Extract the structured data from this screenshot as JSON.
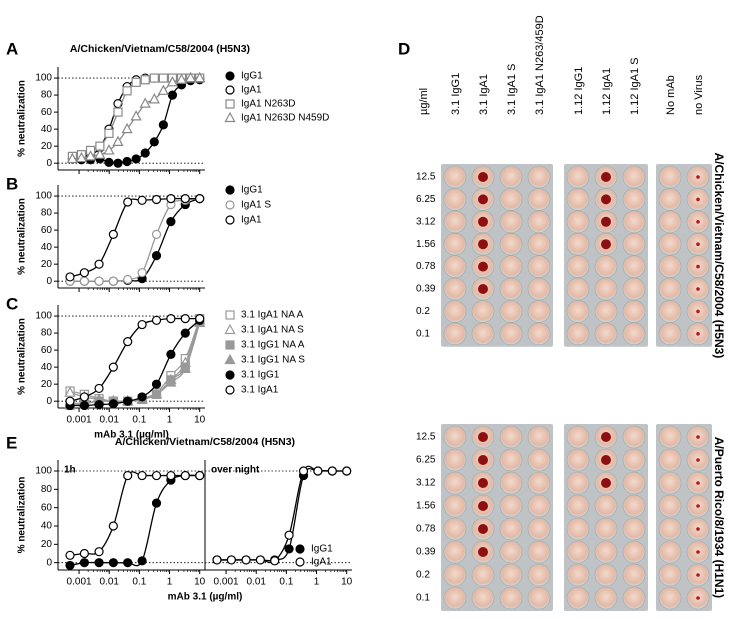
{
  "panel_letters": [
    "A",
    "B",
    "C",
    "D",
    "E"
  ],
  "chart_data": [
    {
      "type": "line",
      "title": "A/Chicken/Vietnam/C58/2004 (H5N3)",
      "ylabel": "% neutralization",
      "xscale": "log",
      "xlim": [
        0.0002,
        15
      ],
      "xticks": [
        0.001,
        0.01,
        0.1,
        1,
        10
      ],
      "show_xtick_labels": false,
      "ylim": [
        -8,
        113
      ],
      "yticks": [
        0,
        20,
        40,
        60,
        80,
        100
      ],
      "reference_lines": [
        0,
        100
      ],
      "legend": true,
      "x": [
        0.0006,
        0.0012,
        0.0024,
        0.0049,
        0.0098,
        0.0195,
        0.039,
        0.078,
        0.156,
        0.3125,
        0.625,
        1.25,
        2.5,
        5,
        10
      ],
      "series": [
        {
          "name": "IgG1",
          "marker": "circle",
          "filled": true,
          "color": "#000000",
          "values": [
            5,
            4,
            4,
            5,
            1,
            0,
            2,
            5,
            12,
            25,
            45,
            80,
            92,
            97,
            98
          ]
        },
        {
          "name": "IgA1",
          "marker": "circle",
          "filled": false,
          "color": "#000000",
          "values": [
            5,
            8,
            10,
            18,
            40,
            70,
            90,
            98,
            100,
            100,
            100,
            100,
            100,
            100,
            100
          ]
        },
        {
          "name": "IgA1 N263D",
          "marker": "square",
          "filled": false,
          "color": "#888888",
          "values": [
            8,
            10,
            15,
            20,
            35,
            60,
            85,
            95,
            98,
            100,
            100,
            100,
            100,
            100,
            100
          ]
        },
        {
          "name": "IgA1 N263D N459D",
          "marker": "triangle",
          "filled": false,
          "color": "#888888",
          "values": [
            5,
            6,
            8,
            10,
            15,
            25,
            40,
            55,
            70,
            75,
            85,
            95,
            98,
            100,
            100
          ]
        }
      ]
    },
    {
      "type": "line",
      "ylabel": "% neutralization",
      "xscale": "log",
      "xlim": [
        0.0002,
        15
      ],
      "xticks": [
        0.001,
        0.01,
        0.1,
        1,
        10
      ],
      "show_xtick_labels": false,
      "ylim": [
        -8,
        113
      ],
      "yticks": [
        0,
        20,
        40,
        60,
        80,
        100
      ],
      "reference_lines": [
        0,
        100
      ],
      "legend": true,
      "x": [
        0.0005,
        0.0015,
        0.0046,
        0.0137,
        0.041,
        0.123,
        0.37,
        1.11,
        3.33,
        10
      ],
      "series": [
        {
          "name": "IgG1",
          "marker": "circle",
          "filled": true,
          "color": "#000000",
          "values": [
            0,
            0,
            0,
            0,
            1,
            3,
            30,
            70,
            90,
            97
          ]
        },
        {
          "name": "IgA1 S",
          "marker": "circle",
          "filled": false,
          "color": "#999999",
          "values": [
            0,
            0,
            0,
            0,
            2,
            10,
            55,
            90,
            95,
            97
          ]
        },
        {
          "name": "IgA1",
          "marker": "circle",
          "filled": false,
          "color": "#000000",
          "values": [
            5,
            10,
            20,
            55,
            93,
            95,
            96,
            97,
            97,
            97
          ]
        }
      ]
    },
    {
      "type": "line",
      "ylabel": "% neutralization",
      "xlabel": "mAb 3.1 (µg/ml)",
      "xscale": "log",
      "xlim": [
        0.0002,
        15
      ],
      "xticks": [
        0.001,
        0.01,
        0.1,
        1,
        10
      ],
      "show_xtick_labels": true,
      "ylim": [
        -8,
        113
      ],
      "yticks": [
        0,
        20,
        40,
        60,
        80,
        100
      ],
      "reference_lines": [
        0,
        100
      ],
      "legend": true,
      "x": [
        0.0005,
        0.0015,
        0.0046,
        0.0137,
        0.041,
        0.123,
        0.37,
        1.11,
        3.33,
        10
      ],
      "series": [
        {
          "name": "3.1 IgA1 NA A",
          "marker": "square",
          "filled": false,
          "color": "#999999",
          "values": [
            12,
            8,
            3,
            0,
            0,
            3,
            10,
            30,
            50,
            97
          ]
        },
        {
          "name": "3.1 IgA1 NA S",
          "marker": "triangle",
          "filled": false,
          "color": "#999999",
          "values": [
            10,
            5,
            2,
            0,
            0,
            2,
            8,
            25,
            45,
            95
          ]
        },
        {
          "name": "3.1 IgG1 NA A",
          "marker": "square",
          "filled": true,
          "color": "#999999",
          "values": [
            -5,
            -3,
            0,
            0,
            0,
            2,
            8,
            25,
            40,
            93
          ]
        },
        {
          "name": "3.1 IgG1 NA S",
          "marker": "triangle",
          "filled": true,
          "color": "#999999",
          "values": [
            -3,
            -2,
            0,
            0,
            0,
            2,
            8,
            22,
            38,
            92
          ]
        },
        {
          "name": "3.1 IgG1",
          "marker": "circle",
          "filled": true,
          "color": "#000000",
          "values": [
            -5,
            -5,
            -4,
            -3,
            0,
            5,
            20,
            55,
            80,
            95
          ]
        },
        {
          "name": "3.1 IgA1",
          "marker": "circle",
          "filled": false,
          "color": "#000000",
          "values": [
            0,
            5,
            15,
            40,
            70,
            90,
            95,
            97,
            97,
            97
          ]
        }
      ]
    },
    {
      "type": "line",
      "title": "A/Chicken/Vietnam/C58/2004 (H5N3)",
      "subtitle": "1h",
      "ylabel": "% neutralization",
      "xlabel": "mAb 3.1 (µg/ml)",
      "xscale": "log",
      "xlim": [
        0.0002,
        15
      ],
      "xticks": [
        0.001,
        0.01,
        0.1,
        1,
        10
      ],
      "show_xtick_labels": true,
      "ylim": [
        -8,
        112
      ],
      "yticks": [
        0,
        20,
        40,
        60,
        80,
        100
      ],
      "reference_lines": [
        0,
        100
      ],
      "legend": false,
      "x": [
        0.0005,
        0.0015,
        0.0046,
        0.0137,
        0.041,
        0.123,
        0.37,
        1.11,
        3.33,
        10
      ],
      "series": [
        {
          "marker": "circle",
          "filled": true,
          "color": "#000000",
          "values": [
            -3,
            0,
            0,
            0,
            0,
            2,
            65,
            90,
            95,
            95
          ]
        },
        {
          "marker": "circle",
          "filled": false,
          "color": "#000000",
          "values": [
            8,
            10,
            12,
            40,
            95,
            95,
            95,
            95,
            95,
            95
          ]
        }
      ]
    },
    {
      "type": "line",
      "subtitle": "over night",
      "xscale": "log",
      "xlim": [
        0.0002,
        15
      ],
      "xticks": [
        0.001,
        0.01,
        0.1,
        1,
        10
      ],
      "show_xtick_labels": true,
      "ylim": [
        -8,
        112
      ],
      "reference_lines": [
        0,
        100
      ],
      "legend": true,
      "x": [
        0.0005,
        0.0015,
        0.0046,
        0.0137,
        0.041,
        0.123,
        0.37,
        1.11,
        3.33,
        10
      ],
      "series": [
        {
          "name": "IgG1",
          "marker": "circle",
          "filled": true,
          "color": "#000000",
          "values": [
            3,
            3,
            3,
            3,
            3,
            15,
            95,
            100,
            100,
            100
          ]
        },
        {
          "name": "IgA1",
          "marker": "circle",
          "filled": false,
          "color": "#000000",
          "values": [
            3,
            3,
            3,
            3,
            2,
            30,
            100,
            100,
            100,
            100
          ]
        }
      ]
    }
  ],
  "plate": {
    "unit": "µg/ml",
    "columns": [
      "3.1 IgG1",
      "3.1 IgA1",
      "3.1 IgA1 S",
      "3.1 IgA1 N263/459D",
      "1.12 IgG1",
      "1.12 IgA1",
      "1.12 IgA1 S",
      "No mAb",
      "no Virus"
    ],
    "rows": [
      "12.5",
      "6.25",
      "3.12",
      "1.56",
      "0.78",
      "0.39",
      "0.2",
      "0.1"
    ],
    "viruses": [
      "A/Chicken/Vietnam/C58/2004 (H5N3)",
      "A/Puerto Rico/8/1934 (H1N1)"
    ]
  }
}
